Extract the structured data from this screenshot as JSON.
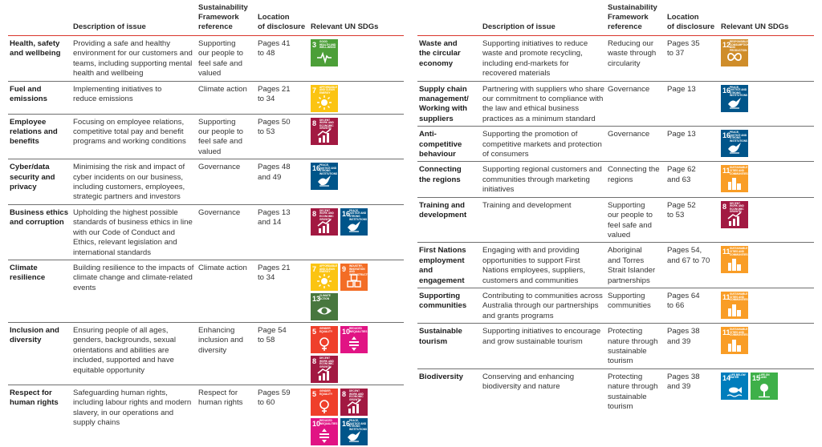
{
  "headers": {
    "issue": "",
    "description": "Description of issue",
    "framework": "Sustainability\nFramework\nreference",
    "location": "Location\nof disclosure",
    "sdgs": "Relevant UN SDGs"
  },
  "sdg_defs": {
    "3": {
      "color": "#4c9f38",
      "label": "Good health and well-being",
      "icon": "heartbeat-icon"
    },
    "5": {
      "color": "#ef402b",
      "label": "Gender equality",
      "icon": "gender-icon"
    },
    "7": {
      "color": "#fbc412",
      "label": "Affordable and clean energy",
      "icon": "sun-icon"
    },
    "8": {
      "color": "#a21942",
      "label": "Decent work and economic growth",
      "icon": "growth-chart-icon"
    },
    "9": {
      "color": "#f36d25",
      "label": "Industry, innovation and infrastructure",
      "icon": "cubes-icon"
    },
    "10": {
      "color": "#e11484",
      "label": "Reduced inequalities",
      "icon": "equality-icon"
    },
    "11": {
      "color": "#f99d26",
      "label": "Sustainable cities and communities",
      "icon": "city-icon"
    },
    "12": {
      "color": "#cf8d2a",
      "label": "Responsible consumption and production",
      "icon": "infinity-icon"
    },
    "13": {
      "color": "#48773e",
      "label": "Climate action",
      "icon": "eye-globe-icon"
    },
    "14": {
      "color": "#007dbc",
      "label": "Life below water",
      "icon": "fish-icon"
    },
    "15": {
      "color": "#3eb049",
      "label": "Life on land",
      "icon": "tree-icon"
    },
    "16": {
      "color": "#00558a",
      "label": "Peace, justice and strong institutions",
      "icon": "dove-icon"
    }
  },
  "left_rows": [
    {
      "issue": "Health, safety\nand wellbeing",
      "description": "Providing a safe and healthy environment for our customers and teams, including supporting mental health and wellbeing",
      "framework": "Supporting\nour people to\nfeel safe and\nvalued",
      "location": "Pages 41\nto 48",
      "sdgs": [
        "3"
      ]
    },
    {
      "issue": "Fuel and\nemissions",
      "description": "Implementing initiatives to\nreduce emissions",
      "framework": "Climate action",
      "location": "Pages 21\nto 34",
      "sdgs": [
        "7"
      ]
    },
    {
      "issue": "Employee\nrelations and\nbenefits",
      "description": "Focusing on employee relations, competitive total pay and benefit programs and working conditions",
      "framework": "Supporting\nour people to\nfeel safe and\nvalued",
      "location": "Pages 50\nto 53",
      "sdgs": [
        "8"
      ]
    },
    {
      "issue": "Cyber/data\nsecurity and\nprivacy",
      "description": "Minimising the risk and impact of cyber incidents on our business, including customers, employees, strategic partners and investors",
      "framework": "Governance",
      "location": "Pages 48\nand 49",
      "sdgs": [
        "16"
      ]
    },
    {
      "issue": "Business ethics\nand corruption",
      "description": "Upholding the highest possible standards of business ethics in line with our Code of Conduct and Ethics, relevant legislation and international standards",
      "framework": "Governance",
      "location": "Pages 13\nand 14",
      "sdgs": [
        "8",
        "16"
      ]
    },
    {
      "issue": "Climate\nresilience",
      "description": "Building resilience to the impacts of climate change and climate-related events",
      "framework": "Climate action",
      "location": "Pages 21\nto 34",
      "sdgs": [
        "7",
        "9",
        "13"
      ]
    },
    {
      "issue": "Inclusion and\ndiversity",
      "description": "Ensuring people of all ages, genders, backgrounds, sexual orientations and abilities are included, supported and have equitable opportunity",
      "framework": "Enhancing\ninclusion and\ndiversity",
      "location": "Page 54\nto 58",
      "sdgs": [
        "5",
        "10",
        "8"
      ]
    },
    {
      "issue": "Respect for\nhuman rights",
      "description": "Safeguarding human rights, including labour rights and modern slavery, in our operations and supply chains",
      "framework": "Respect for\nhuman rights",
      "location": "Pages 59\nto 60",
      "sdgs": [
        "5",
        "8",
        "10",
        "16"
      ]
    }
  ],
  "right_rows": [
    {
      "issue": "Waste and\nthe circular\neconomy",
      "description": "Supporting initiatives to reduce waste and promote recycling, including end-markets for recovered materials",
      "framework": "Reducing our\nwaste through\ncircularity",
      "location": "Pages 35\nto 37",
      "sdgs": [
        "12"
      ]
    },
    {
      "issue": "Supply chain\nmanagement/\nWorking with\nsuppliers",
      "description": "Partnering with suppliers who share our commitment to compliance with the law and ethical business practices as a minimum standard",
      "framework": "Governance",
      "location": "Page 13",
      "sdgs": [
        "16"
      ]
    },
    {
      "issue": "Anti-\ncompetitive\nbehaviour",
      "description": "Supporting the promotion of competitive markets and protection of consumers",
      "framework": "Governance",
      "location": "Page 13",
      "sdgs": [
        "16"
      ]
    },
    {
      "issue": "Connecting\nthe regions",
      "description": "Supporting regional customers and communities through marketing initiatives",
      "framework": "Connecting the\nregions",
      "location": "Page 62\nand 63",
      "sdgs": [
        "11"
      ]
    },
    {
      "issue": "Training and\ndevelopment",
      "description": "Training and development",
      "framework": "Supporting\nour people to\nfeel safe and\nvalued",
      "location": "Page 52\nto 53",
      "sdgs": [
        "8"
      ]
    },
    {
      "issue": "First Nations\nemployment and\nengagement",
      "description": "Engaging with and providing opportunities to support First Nations employees, suppliers, customers and communities",
      "framework": "Aboriginal\nand Torres\nStrait Islander\npartnerships",
      "location": "Pages 54,\nand 67 to 70",
      "sdgs": [
        "11"
      ]
    },
    {
      "issue": "Supporting\ncommunities",
      "description": "Contributing to communities across Australia through our partnerships and grants programs",
      "framework": "Supporting\ncommunities",
      "location": "Pages 64\nto 66",
      "sdgs": [
        "11"
      ]
    },
    {
      "issue": "Sustainable\ntourism",
      "description": "Supporting initiatives to encourage and grow sustainable tourism",
      "framework": "Protecting\nnature through\nsustainable\ntourism",
      "location": "Pages 38\nand 39",
      "sdgs": [
        "11"
      ]
    },
    {
      "issue": "Biodiversity",
      "description": "Conserving and enhancing biodiversity and nature",
      "framework": "Protecting\nnature through\nsustainable\ntourism",
      "location": "Pages 38\nand 39",
      "sdgs": [
        "14",
        "15"
      ]
    }
  ]
}
